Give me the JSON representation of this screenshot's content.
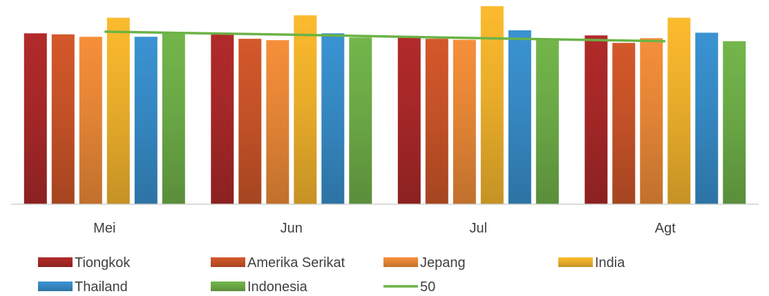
{
  "chart_data": {
    "type": "bar",
    "categories": [
      "Mei",
      "Jun",
      "Jul",
      "Agt"
    ],
    "series": [
      {
        "name": "Tiongkok",
        "values": [
          50.2,
          50.2,
          49.0,
          49.6
        ],
        "color": "#b22a2a"
      },
      {
        "name": "Amerika Serikat",
        "values": [
          49.9,
          48.6,
          48.6,
          47.4
        ],
        "color": "#d4582a"
      },
      {
        "name": "Jepang",
        "values": [
          49.2,
          48.2,
          48.3,
          48.8
        ],
        "color": "#f68f3a"
      },
      {
        "name": "India",
        "values": [
          54.8,
          55.5,
          58.2,
          54.8
        ],
        "color": "#fcbb2e"
      },
      {
        "name": "Thailand",
        "values": [
          49.2,
          50.2,
          51.1,
          50.4
        ],
        "color": "#3a93d2"
      },
      {
        "name": "Indonesia",
        "values": [
          50.5,
          49.0,
          48.3,
          47.9
        ],
        "color": "#73b64b"
      }
    ],
    "line": {
      "name": "50",
      "values": [
        50.7,
        49.8,
        48.8,
        47.9
      ],
      "color": "#6bb245"
    },
    "ylim": [
      0,
      60
    ],
    "grid": false,
    "legend": "bottom"
  }
}
